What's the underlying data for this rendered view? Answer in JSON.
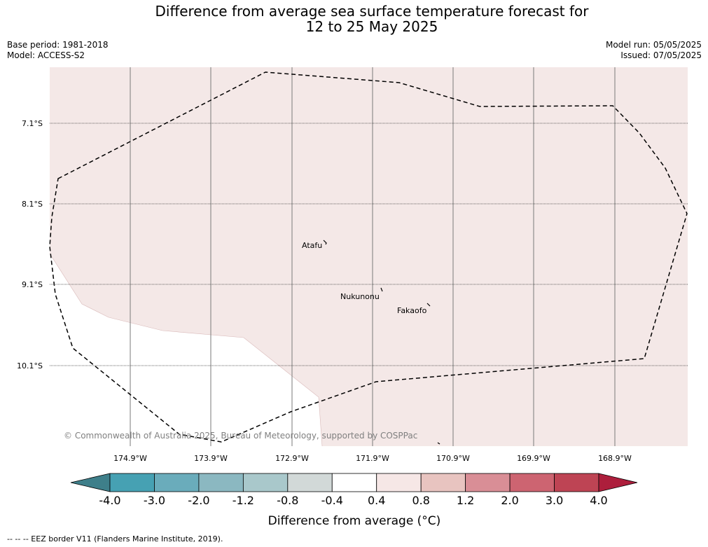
{
  "title": {
    "line1": "Difference from average sea surface temperature forecast for",
    "line2": "12 to 25 May 2025"
  },
  "meta": {
    "base_period": "Base period: 1981-2018",
    "model": "Model: ACCESS-S2",
    "model_run": "Model run: 05/05/2025",
    "issued": "Issued: 07/05/2025"
  },
  "map": {
    "latitude_labels": [
      "7.1°S",
      "8.1°S",
      "9.1°S",
      "10.1°S"
    ],
    "longitude_labels": [
      "174.9°W",
      "173.9°W",
      "172.9°W",
      "171.9°W",
      "170.9°W",
      "169.9°W",
      "168.9°W"
    ],
    "places": [
      "Atafu",
      "Nukunonu",
      "Fakaofo"
    ],
    "copyright": "© Commonwealth of Australia 2025, Bureau of Meteorology, supported by COSPPac",
    "anomaly_fill_color": "#f4e8e7",
    "neutral_fill_color": "#ffffff"
  },
  "colorbar": {
    "tick_labels": [
      "-4.0",
      "-3.0",
      "-2.0",
      "-1.2",
      "-0.8",
      "-0.4",
      "0.4",
      "0.8",
      "1.2",
      "2.0",
      "3.0",
      "4.0"
    ],
    "colors": [
      "#3e7f8a",
      "#46a1b3",
      "#6aacbb",
      "#8bb8c1",
      "#a9c8cb",
      "#d2d9d8",
      "#ffffff",
      "#f6e7e6",
      "#e8c4c0",
      "#d98e96",
      "#cd6471",
      "#be4454",
      "#ad1e3c"
    ],
    "label": "Difference from average (°C)"
  },
  "legend_note": "-- -- -- EEZ border V11 (Flanders Marine Institute, 2019)."
}
